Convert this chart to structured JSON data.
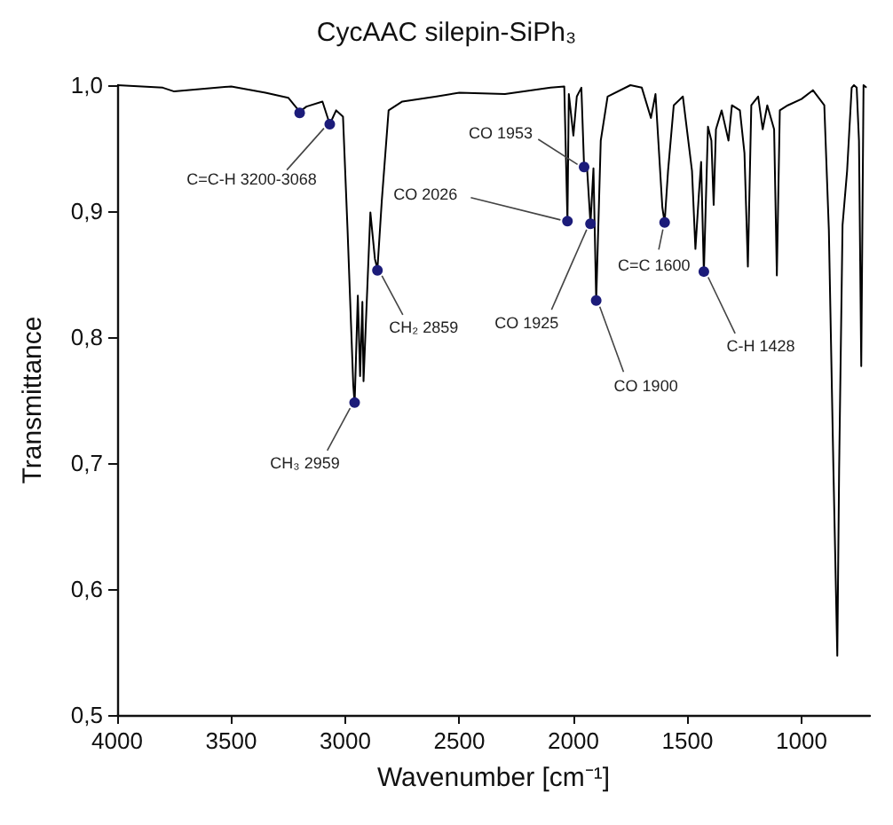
{
  "chart_data": {
    "type": "line",
    "title": "CycAAC silepin-SiPh₃",
    "xlabel": "Wavenumber [cm⁻¹]",
    "ylabel": "Transmittance",
    "xlim": [
      4000,
      700
    ],
    "xticks": [
      4000,
      3500,
      3000,
      2500,
      2000,
      1500,
      1000
    ],
    "ylim": [
      0.5,
      1.0
    ],
    "yticks": [
      {
        "value": 0.5,
        "label": "0,5"
      },
      {
        "value": 0.6,
        "label": "0,6"
      },
      {
        "value": 0.7,
        "label": "0,7"
      },
      {
        "value": 0.8,
        "label": "0,8"
      },
      {
        "value": 0.9,
        "label": "0,9"
      },
      {
        "value": 1.0,
        "label": "1,0"
      }
    ],
    "grid": false,
    "series": [
      {
        "color": "#000000",
        "marker": "none",
        "line_style": "solid",
        "x": [
          4000,
          3800,
          3750,
          3500,
          3350,
          3250,
          3200,
          3170,
          3100,
          3068,
          3040,
          3010,
          2990,
          2965,
          2959,
          2945,
          2935,
          2925,
          2920,
          2890,
          2870,
          2859,
          2840,
          2810,
          2750,
          2600,
          2500,
          2300,
          2100,
          2040,
          2026,
          2020,
          2000,
          1985,
          1965,
          1953,
          1940,
          1925,
          1912,
          1900,
          1880,
          1850,
          1750,
          1700,
          1660,
          1640,
          1610,
          1600,
          1585,
          1560,
          1520,
          1480,
          1465,
          1450,
          1440,
          1428,
          1410,
          1395,
          1385,
          1375,
          1350,
          1320,
          1305,
          1270,
          1250,
          1235,
          1220,
          1190,
          1170,
          1150,
          1120,
          1108,
          1095,
          1060,
          1000,
          950,
          900,
          880,
          860,
          843,
          835,
          820,
          800,
          780,
          770,
          758,
          748,
          738,
          728,
          715
        ],
        "values": [
          1.0,
          0.998,
          0.995,
          0.999,
          0.994,
          0.99,
          0.979,
          0.983,
          0.987,
          0.969,
          0.98,
          0.975,
          0.885,
          0.762,
          0.747,
          0.833,
          0.769,
          0.828,
          0.765,
          0.899,
          0.862,
          0.854,
          0.908,
          0.98,
          0.987,
          0.991,
          0.994,
          0.993,
          0.998,
          0.999,
          0.892,
          0.993,
          0.96,
          0.991,
          0.998,
          0.935,
          0.934,
          0.89,
          0.934,
          0.829,
          0.956,
          0.991,
          1.0,
          0.998,
          0.974,
          0.993,
          0.903,
          0.891,
          0.932,
          0.984,
          0.991,
          0.932,
          0.87,
          0.913,
          0.939,
          0.851,
          0.967,
          0.956,
          0.905,
          0.965,
          0.98,
          0.956,
          0.984,
          0.98,
          0.946,
          0.856,
          0.984,
          0.991,
          0.965,
          0.984,
          0.965,
          0.849,
          0.98,
          0.984,
          0.989,
          0.996,
          0.984,
          0.885,
          0.695,
          0.547,
          0.695,
          0.889,
          0.932,
          0.998,
          1.0,
          0.998,
          0.956,
          0.777,
          1.0,
          0.998
        ]
      },
      {
        "type": "scatter",
        "color": "#1c1c7a",
        "marker": "circle",
        "x": [
          3200,
          3068,
          2959,
          2859,
          2026,
          1953,
          1925,
          1900,
          1600,
          1428
        ],
        "values": [
          0.978,
          0.969,
          0.748,
          0.853,
          0.892,
          0.935,
          0.89,
          0.829,
          0.891,
          0.852
        ]
      }
    ],
    "annotations": [
      {
        "text": "C=C-H 3200-3068",
        "x": 3068,
        "y": 0.969
      },
      {
        "text": "CH₃ 2959",
        "x": 2959,
        "y": 0.748
      },
      {
        "text": "CH₂ 2859",
        "x": 2859,
        "y": 0.853
      },
      {
        "text": "CO 2026",
        "x": 2026,
        "y": 0.892
      },
      {
        "text": "CO 1953",
        "x": 1953,
        "y": 0.935
      },
      {
        "text": "CO 1925",
        "x": 1925,
        "y": 0.89
      },
      {
        "text": "CO 1900",
        "x": 1900,
        "y": 0.829
      },
      {
        "text": "C=C 1600",
        "x": 1600,
        "y": 0.891
      },
      {
        "text": "C-H 1428",
        "x": 1428,
        "y": 0.852
      }
    ]
  }
}
